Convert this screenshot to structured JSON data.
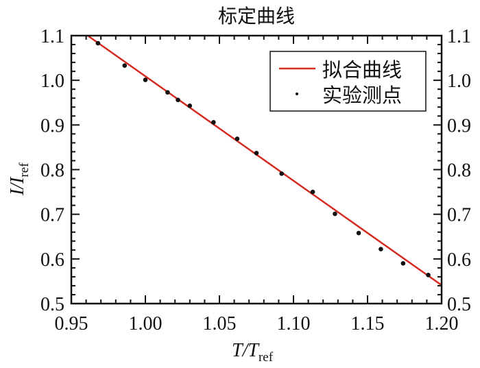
{
  "chart_data": {
    "type": "scatter",
    "title": "标定曲线",
    "xlabel": {
      "main": "T/T",
      "sub": "ref"
    },
    "ylabel": {
      "main": "I/I",
      "sub": "ref"
    },
    "xlim": [
      0.95,
      1.2
    ],
    "ylim": [
      0.5,
      1.1
    ],
    "xticks": [
      "0.95",
      "1.00",
      "1.05",
      "1.10",
      "1.15",
      "1.20"
    ],
    "yticks": [
      "0.5",
      "0.6",
      "0.7",
      "0.8",
      "0.9",
      "1.0",
      "1.1"
    ],
    "x_minor_step": 0.01,
    "y_minor_step": 0.02,
    "grid": false,
    "legend_position": "top-right",
    "series": [
      {
        "name": "拟合曲线",
        "kind": "line",
        "color": "#d42a1f",
        "slope": -2.339,
        "intercept": 3.348
      },
      {
        "name": "实验测点",
        "kind": "scatter",
        "color": "#111111",
        "x": [
          0.968,
          0.986,
          1.0,
          1.015,
          1.022,
          1.03,
          1.046,
          1.062,
          1.075,
          1.092,
          1.113,
          1.128,
          1.144,
          1.159,
          1.174,
          1.191
        ],
        "y": [
          1.083,
          1.033,
          1.001,
          0.973,
          0.956,
          0.943,
          0.906,
          0.869,
          0.837,
          0.791,
          0.75,
          0.701,
          0.658,
          0.622,
          0.59,
          0.564
        ]
      }
    ]
  }
}
